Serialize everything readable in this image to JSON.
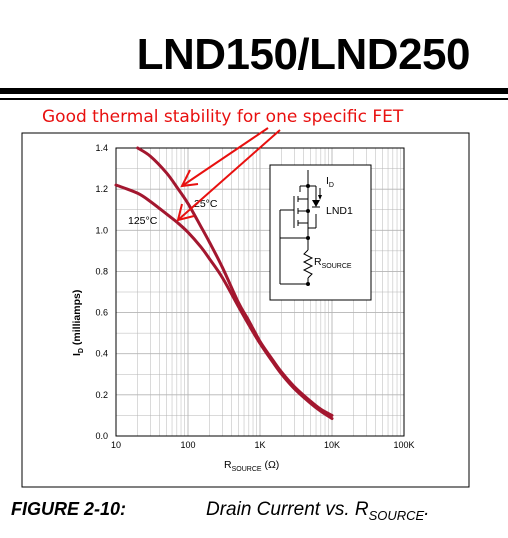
{
  "header": {
    "title": "LND150/LND250"
  },
  "annotation": {
    "text": "Good thermal stability for one specific FET"
  },
  "figure": {
    "label": "FIGURE 2-10:",
    "caption": "Drain Current vs. R",
    "caption_sub": "SOURCE",
    "caption_end": "."
  },
  "chart_data": {
    "type": "line",
    "x_scale": "log",
    "xlim": [
      10,
      100000
    ],
    "ylim": [
      0,
      1.4
    ],
    "xlabel": {
      "main": "R",
      "sub": "SOURCE",
      "unit": " (Ω)"
    },
    "ylabel": {
      "main": "I",
      "sub": "D",
      "unit": " (milliamps)"
    },
    "x_ticks": [
      {
        "value": 10,
        "label": "10"
      },
      {
        "value": 100,
        "label": "100"
      },
      {
        "value": 1000,
        "label": "1K"
      },
      {
        "value": 10000,
        "label": "10K"
      },
      {
        "value": 100000,
        "label": "100K"
      }
    ],
    "y_ticks": [
      {
        "value": 0,
        "label": "0.0"
      },
      {
        "value": 0.2,
        "label": "0.2"
      },
      {
        "value": 0.4,
        "label": "0.4"
      },
      {
        "value": 0.6,
        "label": "0.6"
      },
      {
        "value": 0.8,
        "label": "0.8"
      },
      {
        "value": 1.0,
        "label": "1.0"
      },
      {
        "value": 1.2,
        "label": "1.2"
      },
      {
        "value": 1.4,
        "label": "1.4"
      }
    ],
    "grid": true,
    "series": [
      {
        "name": "25°C",
        "x": [
          20,
          30,
          50,
          70,
          100,
          150,
          200,
          300,
          500,
          700,
          1000,
          1500,
          2000,
          3000,
          5000,
          7000,
          10000
        ],
        "y": [
          1.4,
          1.36,
          1.28,
          1.21,
          1.13,
          1.02,
          0.94,
          0.82,
          0.65,
          0.56,
          0.46,
          0.37,
          0.31,
          0.24,
          0.17,
          0.13,
          0.1
        ]
      },
      {
        "name": "125°C",
        "x": [
          10,
          20,
          30,
          50,
          70,
          100,
          150,
          200,
          300,
          500,
          700,
          1000,
          1500,
          2000,
          3000,
          5000,
          7000,
          10000
        ],
        "y": [
          1.22,
          1.18,
          1.14,
          1.08,
          1.04,
          0.99,
          0.92,
          0.86,
          0.77,
          0.63,
          0.54,
          0.45,
          0.36,
          0.3,
          0.23,
          0.16,
          0.12,
          0.085
        ]
      }
    ],
    "series_labels": [
      {
        "text": "25°C"
      },
      {
        "text": "125°C"
      }
    ],
    "inset_circuit": {
      "id_label": "I",
      "id_sub": "D",
      "device_label": "LND1",
      "resistor_label": "R",
      "resistor_sub": "SOURCE"
    },
    "colors": {
      "curve": "#a3172f",
      "grid": "#b5b5b5",
      "arrow": "#e8100f",
      "frame": "#000000"
    }
  }
}
